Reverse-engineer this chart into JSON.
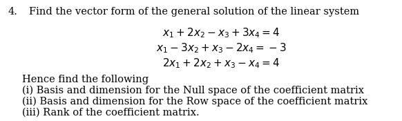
{
  "background_color": "#ffffff",
  "number": "4.",
  "intro_text": "Find the vector form of the general solution of the linear system",
  "eq1": "$x_1 + 2x_2 - x_3 + 3x_4 = 4$",
  "eq2": "$x_1 - 3x_2 + x_3 - 2x_4 = -3$",
  "eq3": "$2x_1 + 2x_2 + x_3 - x_4 = 4$",
  "hence": "Hence find the following",
  "item_i": "(i) Basis and dimension for the Null space of the coefficient matrix",
  "item_ii": "(ii) Basis and dimension for the Row space of the coefficient matrix",
  "item_iii": "(iii) Rank of the coefficient matrix.",
  "font_size_main": 10.5,
  "font_size_eq": 11.0,
  "text_color": "#000000",
  "font_family": "DejaVu Serif"
}
